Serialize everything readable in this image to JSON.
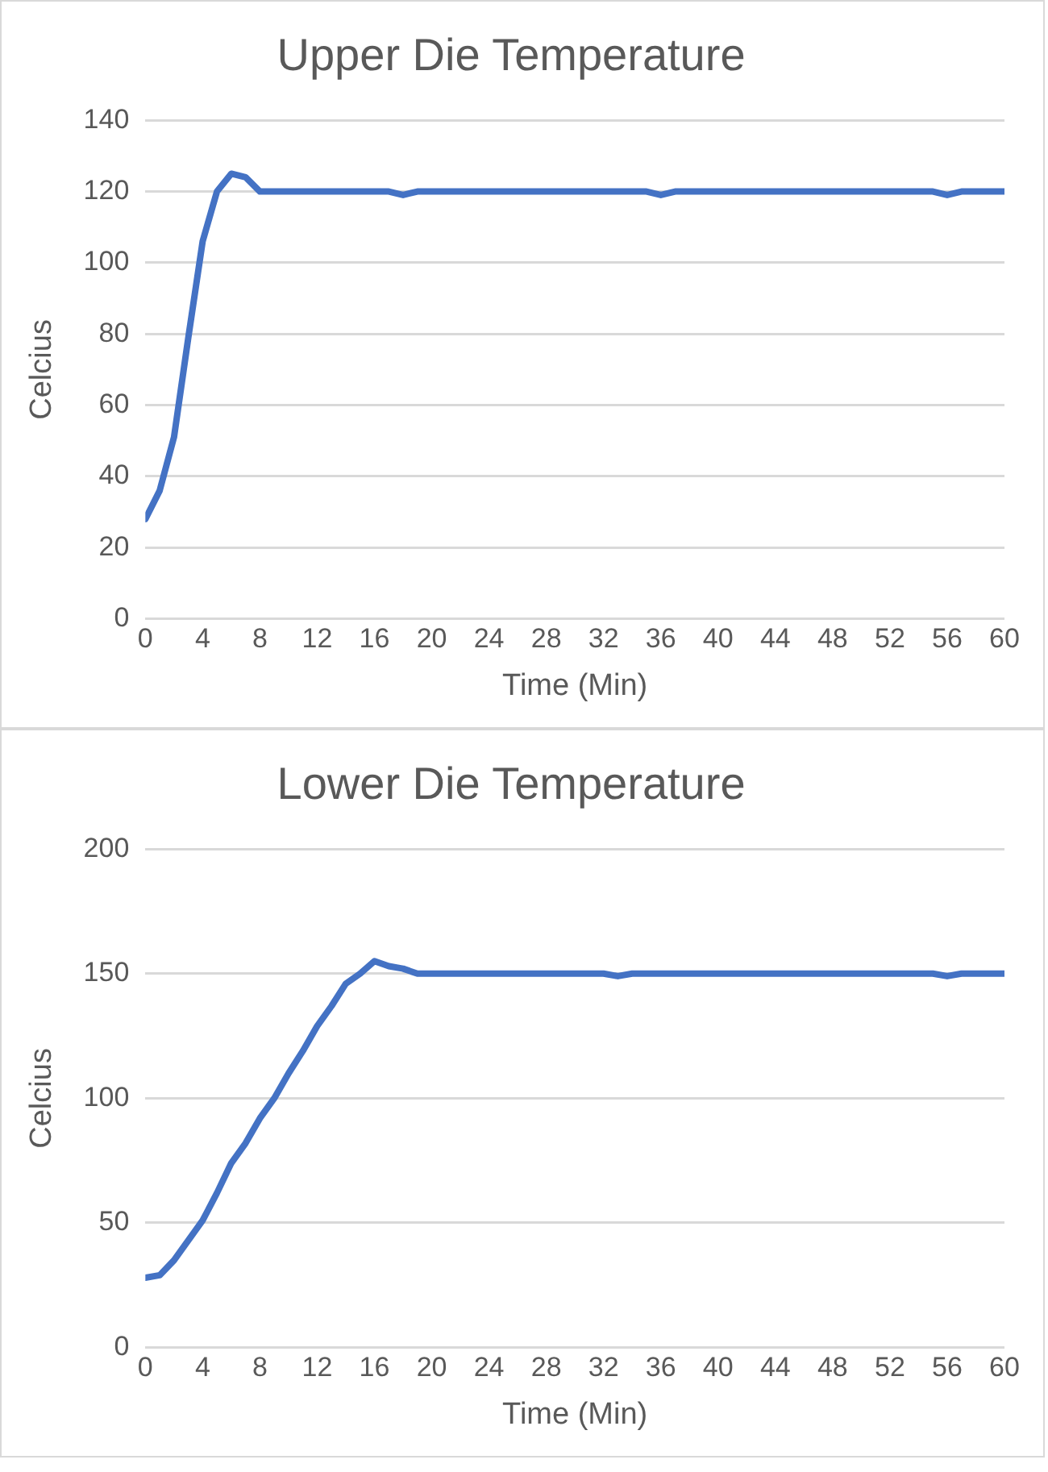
{
  "chart_data": [
    {
      "type": "line",
      "title": "Upper Die Temperature",
      "xlabel": "Time (Min)",
      "ylabel": "Celcius",
      "xlim": [
        0,
        60
      ],
      "xticks": [
        0,
        4,
        8,
        12,
        16,
        20,
        24,
        28,
        32,
        36,
        40,
        44,
        48,
        52,
        56,
        60
      ],
      "ylim": [
        0,
        140
      ],
      "yticks": [
        0,
        20,
        40,
        60,
        80,
        100,
        120,
        140
      ],
      "grid": "y",
      "legend": false,
      "marker": "none",
      "x": [
        0,
        1,
        2,
        3,
        4,
        5,
        6,
        7,
        8,
        10,
        17,
        18,
        19,
        20,
        35,
        36,
        37,
        38,
        55,
        56,
        57,
        60
      ],
      "series": [
        {
          "color": "#4472c4",
          "values": [
            28,
            36,
            51,
            79,
            106,
            120,
            125,
            124,
            120,
            120,
            120,
            119,
            120,
            120,
            120,
            119,
            120,
            120,
            120,
            119,
            120,
            120
          ]
        }
      ]
    },
    {
      "type": "line",
      "title": "Lower Die Temperature",
      "xlabel": "Time (Min)",
      "ylabel": "Celcius",
      "xlim": [
        0,
        60
      ],
      "xticks": [
        0,
        4,
        8,
        12,
        16,
        20,
        24,
        28,
        32,
        36,
        40,
        44,
        48,
        52,
        56,
        60
      ],
      "ylim": [
        0,
        200
      ],
      "yticks": [
        0,
        50,
        100,
        150,
        200
      ],
      "grid": "y",
      "legend": false,
      "marker": "none",
      "x": [
        0,
        1,
        2,
        3,
        4,
        5,
        6,
        7,
        8,
        9,
        10,
        11,
        12,
        13,
        14,
        15,
        16,
        17,
        18,
        19,
        32,
        33,
        34,
        55,
        56,
        57,
        60
      ],
      "series": [
        {
          "color": "#4472c4",
          "values": [
            28,
            29,
            35,
            43,
            51,
            62,
            74,
            82,
            92,
            100,
            110,
            119,
            129,
            137,
            146,
            150,
            155,
            153,
            152,
            150,
            150,
            149,
            150,
            150,
            149,
            150,
            150
          ]
        }
      ]
    }
  ]
}
